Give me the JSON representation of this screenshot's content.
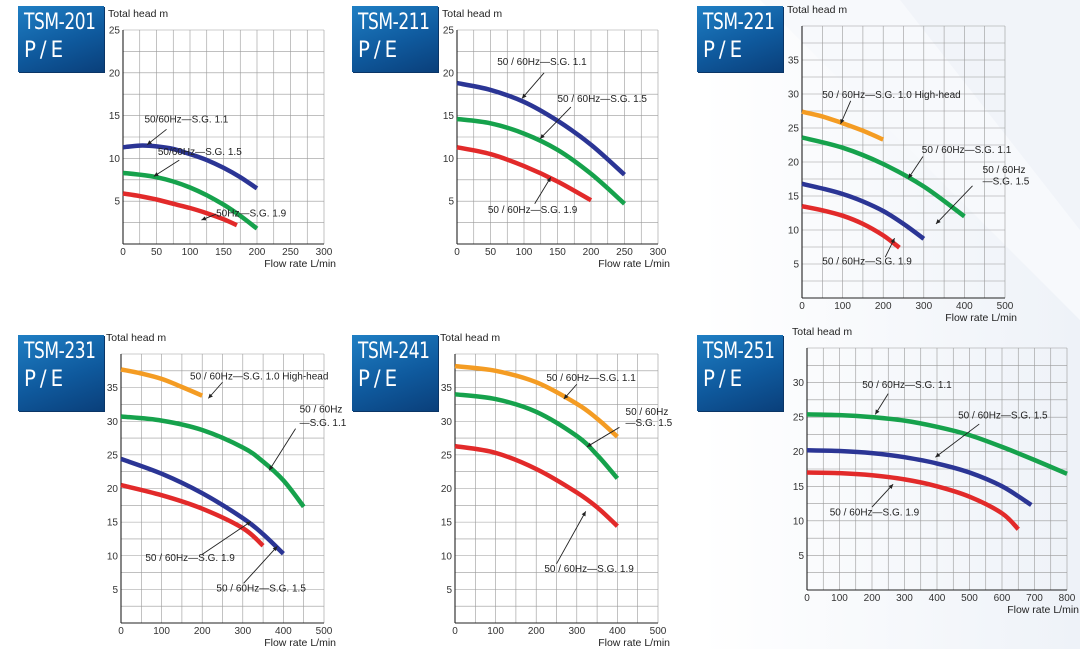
{
  "page": {
    "accent": "#1670b8",
    "background": "#ffffff"
  },
  "colors": {
    "blue": "#2b3595",
    "green": "#16a24c",
    "red": "#e22a2a",
    "orange": "#f49c23",
    "grid": "#9a9a9a",
    "badge": "#1670b8"
  },
  "chart_data": [
    {
      "type": "line",
      "model": "TSM-201",
      "suffix": "P/E",
      "ylabel": "Total head m",
      "xlabel": "Flow rate L/min",
      "xlim": [
        0,
        300
      ],
      "ylim": [
        0,
        25
      ],
      "xticks": [
        0,
        50,
        100,
        150,
        200,
        250,
        300
      ],
      "yticks": [
        5,
        10,
        15,
        20,
        25
      ],
      "grid": true,
      "series": [
        {
          "name": "50/60Hz—S.G. 1.1",
          "color": "blue",
          "x": [
            0,
            25,
            50,
            75,
            100,
            125,
            150,
            175,
            200
          ],
          "y": [
            11.3,
            11.5,
            11.4,
            11.1,
            10.5,
            9.8,
            8.9,
            7.8,
            6.5
          ]
        },
        {
          "name": "50/60Hz—S.G. 1.5",
          "color": "green",
          "x": [
            0,
            25,
            50,
            75,
            100,
            125,
            150,
            175,
            200
          ],
          "y": [
            8.3,
            8.1,
            7.8,
            7.3,
            6.6,
            5.7,
            4.6,
            3.3,
            1.8
          ]
        },
        {
          "name": "50Hz—S.G. 1.9",
          "color": "red",
          "x": [
            0,
            25,
            50,
            75,
            100,
            125,
            150,
            170
          ],
          "y": [
            5.9,
            5.6,
            5.2,
            4.7,
            4.2,
            3.6,
            2.9,
            2.2
          ]
        }
      ],
      "annotations": [
        {
          "text": "50/60Hz—S.G. 1.1",
          "x": 32,
          "y": 14.2,
          "ax": 65,
          "ay": 13.4,
          "bx": 36,
          "by": 11.6
        },
        {
          "text": "50/60Hz—S.G. 1.5",
          "x": 52,
          "y": 10.4,
          "ax": 84,
          "ay": 9.8,
          "bx": 46,
          "by": 7.9
        },
        {
          "text": "50Hz—S.G. 1.9",
          "x": 139,
          "y": 3.2,
          "ax": 139,
          "ay": 3.5,
          "bx": 117,
          "by": 2.8
        }
      ]
    },
    {
      "type": "line",
      "model": "TSM-211",
      "suffix": "P/E",
      "ylabel": "Total head m",
      "xlabel": "Flow rate L/min",
      "xlim": [
        0,
        300
      ],
      "ylim": [
        0,
        25
      ],
      "xticks": [
        0,
        50,
        100,
        150,
        200,
        250,
        300
      ],
      "yticks": [
        5,
        10,
        15,
        20,
        25
      ],
      "grid": true,
      "series": [
        {
          "name": "50 / 60Hz—S.G. 1.1",
          "color": "blue",
          "x": [
            0,
            50,
            100,
            150,
            200,
            250
          ],
          "y": [
            18.8,
            18.0,
            16.6,
            14.4,
            11.6,
            8.1
          ]
        },
        {
          "name": "50 / 60Hz—S.G. 1.5",
          "color": "green",
          "x": [
            0,
            50,
            100,
            150,
            200,
            250
          ],
          "y": [
            14.6,
            14.1,
            12.9,
            11.0,
            8.2,
            4.7
          ]
        },
        {
          "name": "50 / 60Hz—S.G. 1.9",
          "color": "red",
          "x": [
            0,
            50,
            100,
            150,
            200
          ],
          "y": [
            11.3,
            10.5,
            9.1,
            7.3,
            5.1
          ]
        }
      ],
      "annotations": [
        {
          "text": "50 / 60Hz—S.G. 1.1",
          "x": 60,
          "y": 20.9,
          "ax": 130,
          "ay": 20.0,
          "bx": 97,
          "by": 17.0
        },
        {
          "text": "50 / 60Hz—S.G. 1.5",
          "x": 150,
          "y": 16.6,
          "ax": 170,
          "ay": 16.0,
          "bx": 124,
          "by": 12.3
        },
        {
          "text": "50 / 60Hz—S.G. 1.9",
          "x": 46,
          "y": 3.6,
          "ax": 116,
          "ay": 4.7,
          "bx": 140,
          "by": 7.8
        }
      ]
    },
    {
      "type": "line",
      "model": "TSM-221",
      "suffix": "P/E",
      "ylabel": "Total head m",
      "xlabel": "Flow rate L/min",
      "xlim": [
        0,
        500
      ],
      "ylim": [
        0,
        40
      ],
      "xticks": [
        0,
        100,
        200,
        300,
        400,
        500
      ],
      "yticks": [
        5,
        10,
        15,
        20,
        25,
        30,
        35
      ],
      "grid": true,
      "series": [
        {
          "name": "50 / 60Hz—S.G. 1.0 High-head",
          "color": "orange",
          "x": [
            0,
            50,
            100,
            150,
            200
          ],
          "y": [
            27.4,
            26.7,
            25.7,
            24.6,
            23.3
          ]
        },
        {
          "name": "50 / 60Hz—S.G. 1.1",
          "color": "green",
          "x": [
            0,
            100,
            200,
            300,
            400
          ],
          "y": [
            23.6,
            22.1,
            19.7,
            16.4,
            12.0
          ]
        },
        {
          "name": "50 / 60Hz—S.G. 1.5",
          "color": "blue",
          "x": [
            0,
            50,
            100,
            150,
            200,
            250,
            300
          ],
          "y": [
            16.8,
            16.1,
            15.3,
            14.2,
            12.8,
            10.9,
            8.7
          ]
        },
        {
          "name": "50 / 60Hz—S.G. 1.9",
          "color": "red",
          "x": [
            0,
            50,
            100,
            150,
            200,
            240
          ],
          "y": [
            13.5,
            12.9,
            12.1,
            10.9,
            9.2,
            7.4
          ]
        }
      ],
      "annotations": [
        {
          "text": "50 / 60Hz—S.G. 1.0 High-head",
          "x": 50,
          "y": 29.4,
          "ax": 120,
          "ay": 29.0,
          "bx": 95,
          "by": 25.6
        },
        {
          "text": "50 / 60Hz—S.G. 1.1",
          "x": 295,
          "y": 21.3,
          "ax": 298,
          "ay": 20.8,
          "bx": 262,
          "by": 17.6
        },
        {
          "text": "50 / 60Hz",
          "x": 445,
          "y": 18.4,
          "ax": null,
          "ay": null,
          "bx": null,
          "by": null
        },
        {
          "text": "—S.G. 1.5",
          "x": 445,
          "y": 16.7,
          "ax": 420,
          "ay": 16.5,
          "bx": 330,
          "by": 10.9
        },
        {
          "text": "50 / 60Hz—S.G. 1.9",
          "x": 50,
          "y": 4.9,
          "ax": 205,
          "ay": 6.0,
          "bx": 228,
          "by": 8.8
        }
      ]
    },
    {
      "type": "line",
      "model": "TSM-231",
      "suffix": "P/E",
      "ylabel": "Total head m",
      "xlabel": "Flow rate L/min",
      "xlim": [
        0,
        500
      ],
      "ylim": [
        0,
        40
      ],
      "xticks": [
        0,
        100,
        200,
        300,
        400,
        500
      ],
      "yticks": [
        5,
        10,
        15,
        20,
        25,
        30,
        35
      ],
      "grid": true,
      "series": [
        {
          "name": "50 / 60Hz—S.G. 1.0 High-head",
          "color": "orange",
          "x": [
            0,
            50,
            100,
            150,
            200
          ],
          "y": [
            37.7,
            37.1,
            36.3,
            35.1,
            33.8
          ]
        },
        {
          "name": "50 / 60Hz—S.G. 1.1",
          "color": "green",
          "x": [
            0,
            100,
            200,
            300,
            350,
            400,
            450
          ],
          "y": [
            30.7,
            30.1,
            28.7,
            26.1,
            24.0,
            21.2,
            17.3
          ]
        },
        {
          "name": "50 / 60Hz—S.G. 1.5",
          "color": "blue",
          "x": [
            0,
            100,
            200,
            300,
            350,
            400
          ],
          "y": [
            24.4,
            22.2,
            19.3,
            15.6,
            13.2,
            10.3
          ]
        },
        {
          "name": "50 / 60Hz—S.G. 1.9",
          "color": "red",
          "x": [
            0,
            100,
            200,
            300,
            350
          ],
          "y": [
            20.5,
            19.0,
            17.0,
            14.1,
            11.5
          ]
        }
      ],
      "annotations": [
        {
          "text": "50 / 60Hz—S.G. 1.0 High-head",
          "x": 170,
          "y": 36.2,
          "ax": 250,
          "ay": 35.8,
          "bx": 215,
          "by": 33.4
        },
        {
          "text": "50 / 60Hz",
          "x": 440,
          "y": 31.3,
          "ax": null,
          "ay": null,
          "bx": null,
          "by": null
        },
        {
          "text": "—S.G. 1.1",
          "x": 440,
          "y": 29.3,
          "ax": 430,
          "ay": 28.9,
          "bx": 365,
          "by": 22.7
        },
        {
          "text": "50 / 60Hz—S.G. 1.9",
          "x": 60,
          "y": 9.2,
          "ax": 200,
          "ay": 10.2,
          "bx": 320,
          "by": 15.1
        },
        {
          "text": "50 / 60Hz—S.G. 1.5",
          "x": 235,
          "y": 4.7,
          "ax": 302,
          "ay": 5.9,
          "bx": 385,
          "by": 11.4
        }
      ]
    },
    {
      "type": "line",
      "model": "TSM-241",
      "suffix": "P/E",
      "ylabel": "Total head m",
      "xlabel": "Flow rate L/min",
      "xlim": [
        0,
        500
      ],
      "ylim": [
        0,
        40
      ],
      "xticks": [
        0,
        100,
        200,
        300,
        400,
        500
      ],
      "yticks": [
        5,
        10,
        15,
        20,
        25,
        30,
        35
      ],
      "grid": true,
      "series": [
        {
          "name": "50 / 60Hz—S.G. 1.1",
          "color": "orange",
          "x": [
            0,
            100,
            200,
            300,
            350,
            400
          ],
          "y": [
            38.2,
            37.5,
            35.8,
            32.6,
            30.4,
            27.7
          ]
        },
        {
          "name": "50 / 60Hz—S.G. 1.5",
          "color": "green",
          "x": [
            0,
            100,
            200,
            300,
            350,
            400
          ],
          "y": [
            34.0,
            33.3,
            31.4,
            27.8,
            25.0,
            21.5
          ]
        },
        {
          "name": "50 / 60Hz—S.G. 1.9",
          "color": "red",
          "x": [
            0,
            100,
            200,
            300,
            350,
            400
          ],
          "y": [
            26.3,
            25.3,
            22.9,
            19.4,
            17.2,
            14.4
          ]
        }
      ],
      "annotations": [
        {
          "text": "50 / 60Hz—S.G. 1.1",
          "x": 225,
          "y": 36.0,
          "ax": 300,
          "ay": 35.5,
          "bx": 268,
          "by": 33.3
        },
        {
          "text": "50 / 60Hz",
          "x": 420,
          "y": 30.9,
          "ax": null,
          "ay": null,
          "bx": null,
          "by": null
        },
        {
          "text": "—S.G. 1.5",
          "x": 420,
          "y": 29.3,
          "ax": 405,
          "ay": 29.1,
          "bx": 325,
          "by": 26.2
        },
        {
          "text": "50 / 60Hz—S.G. 1.9",
          "x": 220,
          "y": 7.6,
          "ax": 250,
          "ay": 8.8,
          "bx": 322,
          "by": 16.6
        }
      ]
    },
    {
      "type": "line",
      "model": "TSM-251",
      "suffix": "P/E",
      "ylabel": "Total head m",
      "xlabel": "Flow rate L/min",
      "xlim": [
        0,
        800
      ],
      "ylim": [
        0,
        35
      ],
      "xticks": [
        0,
        100,
        200,
        300,
        400,
        500,
        600,
        700,
        800
      ],
      "yticks": [
        5,
        10,
        15,
        20,
        25,
        30
      ],
      "grid": true,
      "series": [
        {
          "name": "50 / 60Hz—S.G. 1.1",
          "color": "green",
          "x": [
            0,
            100,
            200,
            300,
            400,
            500,
            600,
            700,
            800
          ],
          "y": [
            25.4,
            25.3,
            25.0,
            24.5,
            23.6,
            22.4,
            20.7,
            18.8,
            16.8
          ]
        },
        {
          "name": "50 / 60Hz—S.G. 1.5",
          "color": "blue",
          "x": [
            0,
            100,
            200,
            300,
            400,
            500,
            600,
            690
          ],
          "y": [
            20.2,
            20.1,
            19.8,
            19.2,
            18.3,
            17.0,
            15.0,
            12.3
          ]
        },
        {
          "name": "50 / 60Hz—S.G. 1.9",
          "color": "red",
          "x": [
            0,
            100,
            200,
            300,
            400,
            500,
            600,
            650
          ],
          "y": [
            17.0,
            16.9,
            16.6,
            16.0,
            15.0,
            13.5,
            11.1,
            8.8
          ]
        }
      ],
      "annotations": [
        {
          "text": "50 / 60Hz—S.G. 1.1",
          "x": 170,
          "y": 29.2,
          "ax": 250,
          "ay": 28.4,
          "bx": 210,
          "by": 25.4
        },
        {
          "text": "50 / 60Hz—S.G. 1.5",
          "x": 465,
          "y": 24.8,
          "ax": 530,
          "ay": 24.0,
          "bx": 395,
          "by": 19.2
        },
        {
          "text": "50 / 60Hz—S.G. 1.9",
          "x": 70,
          "y": 10.8,
          "ax": 200,
          "ay": 12.0,
          "bx": 265,
          "by": 15.3
        }
      ]
    }
  ]
}
